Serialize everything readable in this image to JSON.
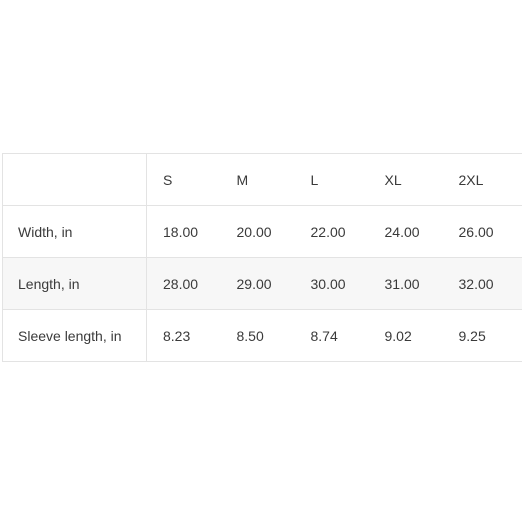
{
  "size_chart": {
    "headers": [
      "",
      "S",
      "M",
      "L",
      "XL",
      "2XL"
    ],
    "rows": [
      {
        "label": "Width, in",
        "values": [
          "18.00",
          "20.00",
          "22.00",
          "24.00",
          "26.00"
        ]
      },
      {
        "label": "Length, in",
        "values": [
          "28.00",
          "29.00",
          "30.00",
          "31.00",
          "32.00"
        ]
      },
      {
        "label": "Sleeve length, in",
        "values": [
          "8.23",
          "8.50",
          "8.74",
          "9.02",
          "9.25"
        ]
      }
    ]
  }
}
